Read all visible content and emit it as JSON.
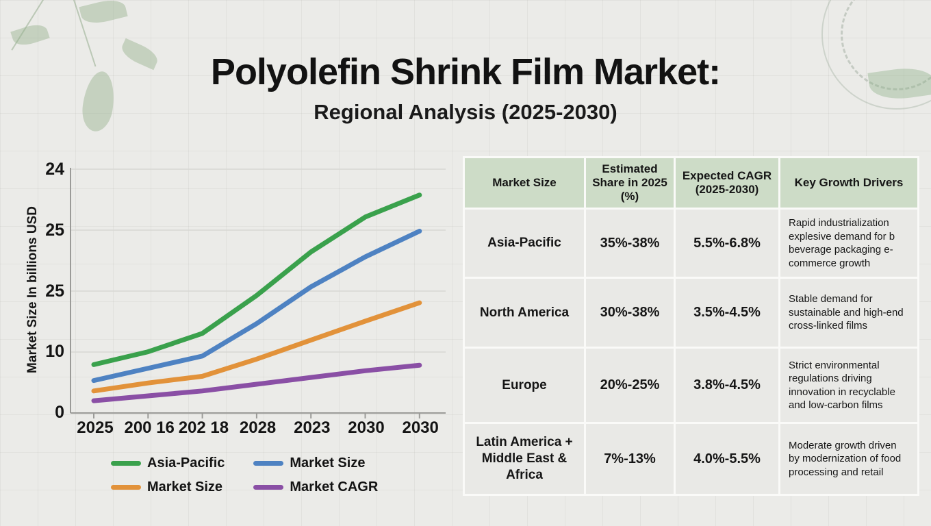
{
  "title": "Polyolefin Shrink Film Market:",
  "subtitle": "Regional Analysis (2025-2030)",
  "chart": {
    "y_axis_title": "Market Size In billions USD",
    "y_ticks": [
      "24",
      "25",
      "25",
      "10",
      "0"
    ],
    "x_ticks": [
      "2025",
      "200 16",
      "202 18",
      "2028",
      "2023",
      "2030",
      "2030"
    ],
    "legend": [
      {
        "label": "Asia-Pacific",
        "color": "#3aa14c"
      },
      {
        "label": "Market Size",
        "color": "#4e82c2"
      },
      {
        "label": "Market Size",
        "color": "#e2923a"
      },
      {
        "label": "Market CAGR",
        "color": "#8a4fa5"
      }
    ]
  },
  "chart_data": {
    "type": "line",
    "title": "Polyolefin Shrink Film Market: Regional Analysis (2025-2030)",
    "categories": [
      "2025",
      "200 16",
      "202 18",
      "2028",
      "2023",
      "2030",
      "2030"
    ],
    "series": [
      {
        "name": "Asia-Pacific",
        "color": "#3aa14c",
        "values": [
          7.9,
          10.0,
          13.0,
          19.2,
          26.3,
          32.0,
          35.6
        ]
      },
      {
        "name": "Market Size",
        "color": "#4e82c2",
        "values": [
          5.3,
          7.3,
          9.3,
          14.6,
          20.6,
          25.5,
          29.7
        ]
      },
      {
        "name": "Market Size",
        "color": "#e2923a",
        "values": [
          3.6,
          4.9,
          6.0,
          8.8,
          11.9,
          15.0,
          18.0
        ]
      },
      {
        "name": "Market CAGR",
        "color": "#8a4fa5",
        "values": [
          2.0,
          2.8,
          3.6,
          4.7,
          5.8,
          6.9,
          7.8
        ]
      }
    ],
    "xlabel": "",
    "ylabel": "Market Size In billions USD",
    "y_tick_labels_as_shown": [
      "24",
      "25",
      "25",
      "10",
      "0"
    ],
    "ylim": [
      0,
      39.8
    ],
    "grid": true,
    "legend_position": "bottom-left"
  },
  "table": {
    "columns": [
      "Market Size",
      "Estimated Share in 2025 (%)",
      "Expected CAGR (2025-2030)",
      "Key Growth Drivers"
    ],
    "rows": [
      {
        "region": "Asia-Pacific",
        "share": "35%-38%",
        "cagr": "5.5%-6.8%",
        "drivers": "Rapid industrialization explesive demand for b beverage packaging e-commerce growth"
      },
      {
        "region": "North America",
        "share": "30%-38%",
        "cagr": "3.5%-4.5%",
        "drivers": "Stable demand for sustainable and high-end cross-linked films"
      },
      {
        "region": "Europe",
        "share": "20%-25%",
        "cagr": "3.8%-4.5%",
        "drivers": "Strict environmental regulations driving innovation in recyclable and low-carbon films"
      },
      {
        "region": "Latin America + Middle East & Africa",
        "share": "7%-13%",
        "cagr": "4.0%-5.5%",
        "drivers": "Moderate growth driven by modernization of food processing and retail"
      }
    ],
    "header_bg": "#cddcc7"
  },
  "colors": {
    "background": "#ebebe8",
    "accent_green_header": "#cddcc7",
    "line_green": "#3aa14c",
    "line_blue": "#4e82c2",
    "line_orange": "#e2923a",
    "line_purple": "#8a4fa5"
  },
  "decorations": {
    "top_left": "leaf-branch-watermark",
    "top_right": "circular-botanical-stamp-watermark"
  }
}
